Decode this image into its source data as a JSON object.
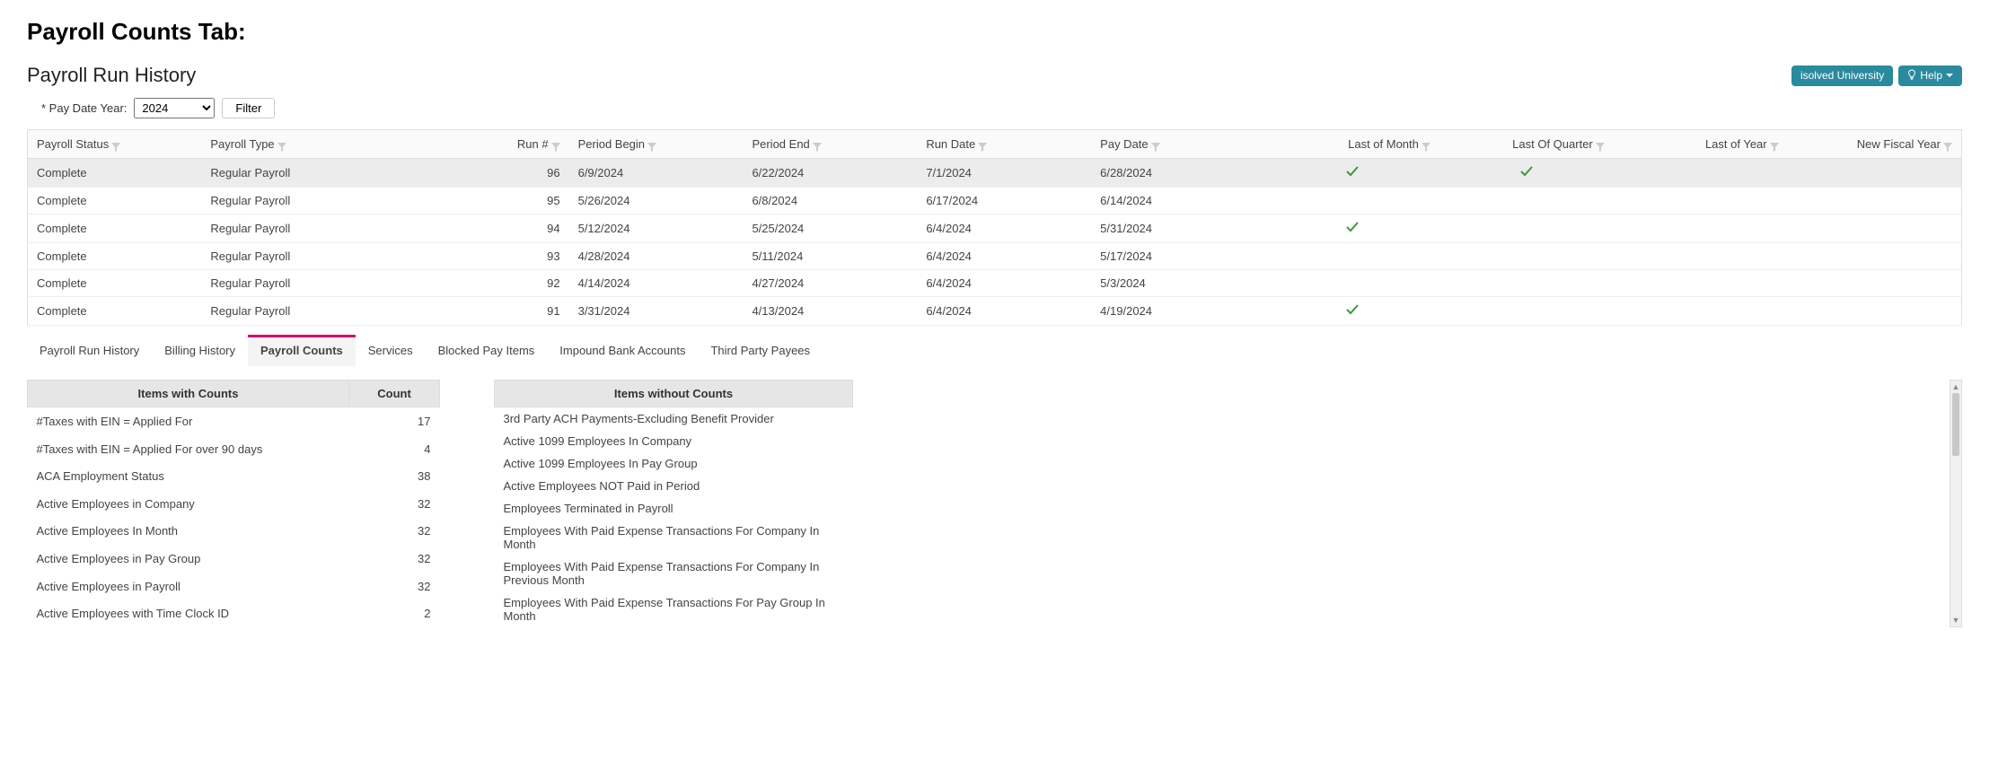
{
  "main_heading": "Payroll Counts Tab:",
  "page_title": "Payroll Run History",
  "buttons": {
    "university": "isolved University",
    "help": "Help"
  },
  "filter": {
    "label": "* Pay Date Year:",
    "year": "2024",
    "button": "Filter"
  },
  "grid": {
    "headers": {
      "status": "Payroll Status",
      "type": "Payroll Type",
      "run": "Run #",
      "begin": "Period Begin",
      "end": "Period End",
      "rundate": "Run Date",
      "paydate": "Pay Date",
      "lastmonth": "Last of Month",
      "lastquarter": "Last Of Quarter",
      "lastyear": "Last of Year",
      "newfy": "New Fiscal Year"
    },
    "rows": [
      {
        "status": "Complete",
        "type": "Regular Payroll",
        "run": "96",
        "begin": "6/9/2024",
        "end": "6/22/2024",
        "rundate": "7/1/2024",
        "paydate": "6/28/2024",
        "lastmonth": true,
        "lastquarter": true,
        "lastyear": false,
        "newfy": false,
        "selected": true
      },
      {
        "status": "Complete",
        "type": "Regular Payroll",
        "run": "95",
        "begin": "5/26/2024",
        "end": "6/8/2024",
        "rundate": "6/17/2024",
        "paydate": "6/14/2024",
        "lastmonth": false,
        "lastquarter": false,
        "lastyear": false,
        "newfy": false
      },
      {
        "status": "Complete",
        "type": "Regular Payroll",
        "run": "94",
        "begin": "5/12/2024",
        "end": "5/25/2024",
        "rundate": "6/4/2024",
        "paydate": "5/31/2024",
        "lastmonth": true,
        "lastquarter": false,
        "lastyear": false,
        "newfy": false
      },
      {
        "status": "Complete",
        "type": "Regular Payroll",
        "run": "93",
        "begin": "4/28/2024",
        "end": "5/11/2024",
        "rundate": "6/4/2024",
        "paydate": "5/17/2024",
        "lastmonth": false,
        "lastquarter": false,
        "lastyear": false,
        "newfy": false
      },
      {
        "status": "Complete",
        "type": "Regular Payroll",
        "run": "92",
        "begin": "4/14/2024",
        "end": "4/27/2024",
        "rundate": "6/4/2024",
        "paydate": "5/3/2024",
        "lastmonth": false,
        "lastquarter": false,
        "lastyear": false,
        "newfy": false
      },
      {
        "status": "Complete",
        "type": "Regular Payroll",
        "run": "91",
        "begin": "3/31/2024",
        "end": "4/13/2024",
        "rundate": "6/4/2024",
        "paydate": "4/19/2024",
        "lastmonth": true,
        "lastquarter": false,
        "lastyear": false,
        "newfy": false
      }
    ]
  },
  "tabs": [
    "Payroll Run History",
    "Billing History",
    "Payroll Counts",
    "Services",
    "Blocked Pay Items",
    "Impound Bank Accounts",
    "Third Party Payees"
  ],
  "active_tab": "Payroll Counts",
  "counts": {
    "header_item": "Items with Counts",
    "header_count": "Count",
    "rows": [
      {
        "label": "#Taxes with EIN = Applied For",
        "count": "17"
      },
      {
        "label": "#Taxes with EIN = Applied For over 90 days",
        "count": "4"
      },
      {
        "label": "ACA Employment Status",
        "count": "38"
      },
      {
        "label": "Active Employees in Company",
        "count": "32"
      },
      {
        "label": "Active Employees In Month",
        "count": "32"
      },
      {
        "label": "Active Employees in Pay Group",
        "count": "32"
      },
      {
        "label": "Active Employees in Payroll",
        "count": "32"
      },
      {
        "label": "Active Employees with Time Clock ID",
        "count": "2"
      }
    ]
  },
  "nocounts": {
    "header": "Items without Counts",
    "rows": [
      "3rd Party ACH Payments-Excluding Benefit Provider",
      "Active 1099 Employees In Company",
      "Active 1099 Employees In Pay Group",
      "Active Employees NOT Paid in Period",
      "Employees Terminated in Payroll",
      "Employees With Paid Expense Transactions For Company In Month",
      "Employees With Paid Expense Transactions For Company In Previous Month",
      "Employees With Paid Expense Transactions For Pay Group In Month"
    ]
  },
  "colors": {
    "accent": "#d6006e",
    "teal": "#2a8a9e",
    "check": "#3a9a3a",
    "header_bg": "#e6e6e6",
    "border": "#dedede"
  }
}
